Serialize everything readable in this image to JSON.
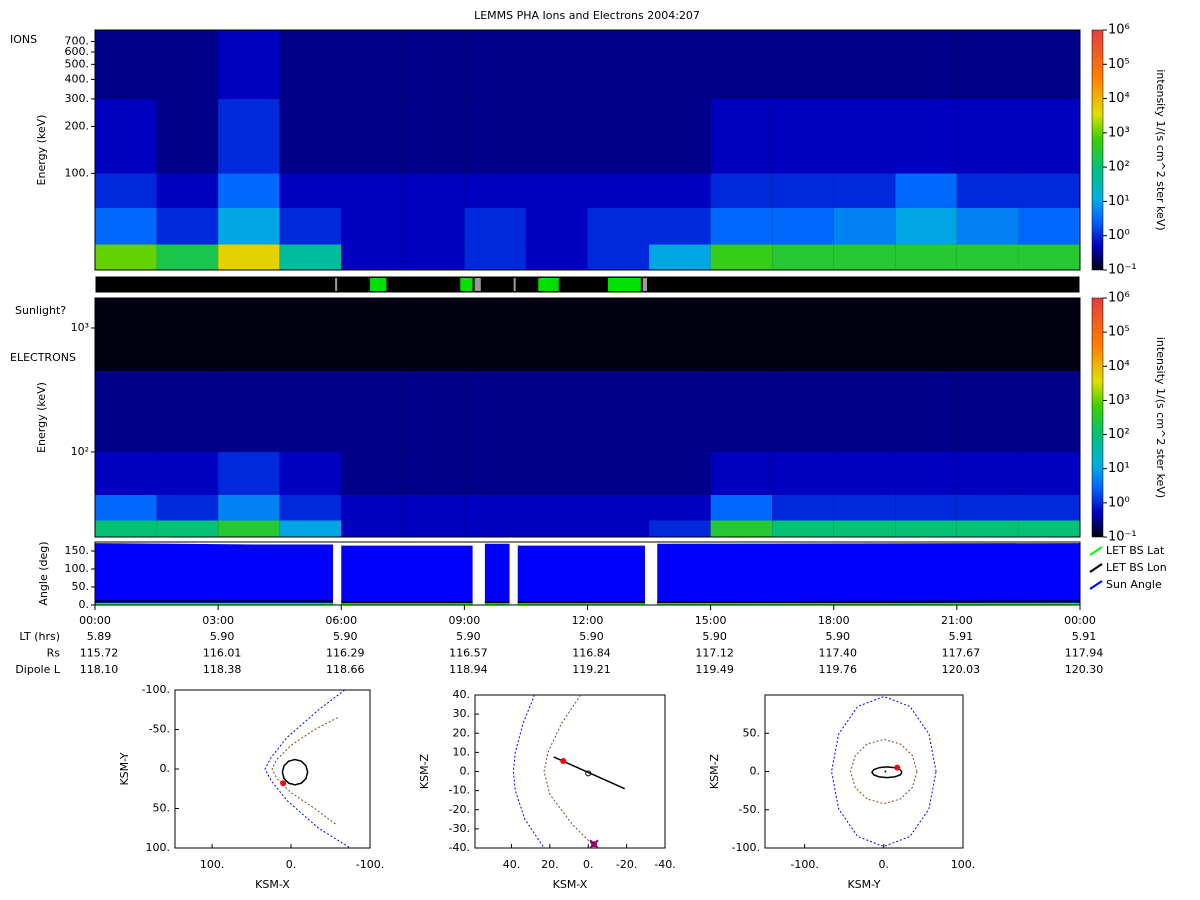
{
  "chart_data": [
    {
      "type": "heatmap",
      "title": "LEMMS PHA Ions and Electrons  2004:207",
      "annotation": "IONS",
      "ylabel": "Energy (keV)",
      "xlim": [
        0,
        24
      ],
      "ylim": [
        24,
        830
      ],
      "ylog": true,
      "yticks": [
        {
          "value": 100,
          "label": "100."
        },
        {
          "value": 200,
          "label": "200."
        },
        {
          "value": 300,
          "label": "300."
        },
        {
          "value": 400,
          "label": "400."
        },
        {
          "value": 500,
          "label": "500."
        },
        {
          "value": 600,
          "label": "600."
        },
        {
          "value": 700,
          "label": "700."
        }
      ],
      "x_edges": [
        0,
        1.5,
        3,
        4.5,
        6,
        7.5,
        9,
        10.5,
        12,
        13.5,
        15,
        16.5,
        18,
        19.5,
        21,
        22.5,
        24
      ],
      "y_edges": [
        24,
        35,
        60,
        100,
        300,
        830
      ],
      "z": [
        [
          1000,
          200,
          5000,
          50,
          0.5,
          0.5,
          1,
          0.5,
          1,
          10,
          500,
          300,
          300,
          300,
          300,
          300
        ],
        [
          3,
          1,
          10,
          1,
          0.5,
          0.5,
          1,
          0.5,
          1,
          1,
          3,
          3,
          5,
          10,
          5,
          3
        ],
        [
          1,
          0.5,
          3,
          0.5,
          0.5,
          0.5,
          0.5,
          0.5,
          0.5,
          0.5,
          1,
          1,
          1,
          3,
          1,
          1
        ],
        [
          0.5,
          0.3,
          1,
          0.3,
          0.3,
          0.3,
          0.3,
          0.3,
          0.3,
          0.3,
          0.5,
          0.5,
          0.5,
          0.5,
          0.5,
          0.5
        ],
        [
          0.3,
          0.3,
          0.5,
          0.3,
          0.3,
          0.3,
          0.3,
          0.3,
          0.3,
          0.3,
          0.3,
          0.3,
          0.3,
          0.3,
          0.3,
          0.3
        ]
      ],
      "zlim": [
        0.1,
        1000000
      ],
      "zlabel": "intensity 1/(s cm^2 ster keV)",
      "zticks": [
        {
          "value": 0.1,
          "label": "10⁻¹"
        },
        {
          "value": 1,
          "label": "10⁰"
        },
        {
          "value": 10,
          "label": "10¹"
        },
        {
          "value": 100,
          "label": "10²"
        },
        {
          "value": 1000,
          "label": "10³"
        },
        {
          "value": 10000,
          "label": "10⁴"
        },
        {
          "value": 100000,
          "label": "10⁵"
        },
        {
          "value": 1000000,
          "label": "10⁶"
        }
      ]
    },
    {
      "type": "event",
      "label": "Sunlight?",
      "xlim": [
        0,
        24
      ],
      "series": [
        {
          "color": "#00e000",
          "intervals": [
            [
              6.7,
              7.1
            ],
            [
              8.9,
              9.2
            ],
            [
              10.8,
              11.3
            ],
            [
              12.5,
              13.3
            ]
          ]
        },
        {
          "color": "#999999",
          "intervals": [
            [
              5.85,
              5.9
            ],
            [
              9.25,
              9.4
            ],
            [
              10.2,
              10.25
            ],
            [
              13.35,
              13.45
            ]
          ]
        }
      ]
    },
    {
      "type": "heatmap",
      "annotation": "ELECTRONS",
      "ylabel": "Energy (keV)",
      "xlim": [
        0,
        24
      ],
      "ylim": [
        20.6,
        1745
      ],
      "ylog": true,
      "yticks": [
        {
          "value": 100,
          "label": "10²"
        },
        {
          "value": 1000,
          "label": "10³"
        }
      ],
      "x_edges": [
        0,
        1.5,
        3,
        4.5,
        6,
        7.5,
        9,
        10.5,
        12,
        13.5,
        15,
        16.5,
        18,
        19.5,
        21,
        22.5,
        24
      ],
      "y_edges": [
        20.6,
        28,
        45,
        100,
        450,
        1745
      ],
      "z": [
        [
          100,
          100,
          300,
          10,
          0.5,
          0.5,
          0.5,
          0.5,
          0.5,
          1,
          300,
          100,
          100,
          100,
          100,
          100
        ],
        [
          3,
          1,
          5,
          1,
          0.5,
          0.5,
          0.5,
          0.5,
          0.5,
          0.5,
          3,
          1,
          1,
          1,
          1,
          1
        ],
        [
          0.5,
          0.5,
          1,
          0.5,
          0.3,
          0.3,
          0.3,
          0.3,
          0.3,
          0.3,
          0.5,
          0.5,
          0.5,
          0.5,
          0.5,
          0.5
        ],
        [
          0.3,
          0.3,
          0.3,
          0.3,
          0.3,
          0.3,
          0.3,
          0.3,
          0.3,
          0.3,
          0.3,
          0.3,
          0.3,
          0.3,
          0.3,
          0.3
        ],
        [
          0.1,
          0.1,
          0.1,
          0.1,
          0.1,
          0.1,
          0.1,
          0.1,
          0.1,
          0.1,
          0.1,
          0.1,
          0.1,
          0.1,
          0.1,
          0.1
        ]
      ],
      "zlim": [
        0.1,
        1000000
      ],
      "zlabel": "intensity 1/(s cm^2 ster keV)",
      "zticks": [
        {
          "value": 0.1,
          "label": "10⁻¹"
        },
        {
          "value": 1,
          "label": "10⁰"
        },
        {
          "value": 10,
          "label": "10¹"
        },
        {
          "value": 100,
          "label": "10²"
        },
        {
          "value": 1000,
          "label": "10³"
        },
        {
          "value": 10000,
          "label": "10⁴"
        },
        {
          "value": 100000,
          "label": "10⁵"
        },
        {
          "value": 1000000,
          "label": "10⁶"
        }
      ]
    },
    {
      "type": "area",
      "ylabel": "Angle (deg)",
      "xlim": [
        0,
        24
      ],
      "ylim": [
        0,
        175
      ],
      "yticks": [
        {
          "value": 0,
          "label": "0."
        },
        {
          "value": 50,
          "label": "50."
        },
        {
          "value": 100,
          "label": "100."
        },
        {
          "value": 150,
          "label": "150."
        }
      ],
      "xticks": [
        {
          "value": 0,
          "label": "00:00"
        },
        {
          "value": 3,
          "label": "03:00"
        },
        {
          "value": 6,
          "label": "06:00"
        },
        {
          "value": 9,
          "label": "09:00"
        },
        {
          "value": 12,
          "label": "12:00"
        },
        {
          "value": 15,
          "label": "15:00"
        },
        {
          "value": 18,
          "label": "18:00"
        },
        {
          "value": 21,
          "label": "21:00"
        },
        {
          "value": 24,
          "label": "00:00"
        }
      ],
      "x": [
        0,
        2,
        4,
        5.8,
        5.9,
        6.0,
        9.2,
        9.3,
        9.5,
        10.1,
        10.2,
        10.3,
        13.4,
        13.5,
        13.7,
        24
      ],
      "series": [
        {
          "name": "LET BS Lat",
          "color": "#00ff00",
          "values": [
            3,
            3,
            3,
            3,
            null,
            3,
            3,
            null,
            3,
            3,
            null,
            3,
            3,
            null,
            3,
            3
          ]
        },
        {
          "name": "LET BS Lon",
          "color": "#000000",
          "values": [
            10,
            10,
            10,
            10,
            null,
            8,
            8,
            null,
            8,
            8,
            null,
            8,
            8,
            null,
            8,
            10
          ]
        },
        {
          "name": "Sun Angle",
          "color": "#0000ff",
          "fill": true,
          "values": [
            172,
            170,
            168,
            168,
            null,
            165,
            165,
            null,
            170,
            170,
            null,
            165,
            165,
            null,
            170,
            172
          ]
        }
      ],
      "ephemeris": [
        {
          "label": "LT (hrs)",
          "values": [
            "5.89",
            "5.90",
            "5.90",
            "5.90",
            "5.90",
            "5.90",
            "5.90",
            "5.91",
            "5.91"
          ]
        },
        {
          "label": "Rs",
          "values": [
            "115.72",
            "116.01",
            "116.29",
            "116.57",
            "116.84",
            "117.12",
            "117.40",
            "117.67",
            "117.94"
          ]
        },
        {
          "label": "Dipole L",
          "values": [
            "118.10",
            "118.38",
            "118.66",
            "118.94",
            "119.21",
            "119.49",
            "119.76",
            "120.03",
            "120.30"
          ]
        }
      ]
    },
    {
      "type": "line",
      "xlabel": "KSM-X",
      "ylabel": "KSM-Y",
      "xlim": [
        147,
        -100
      ],
      "ylim": [
        100,
        -100
      ],
      "xticks": [
        {
          "value": 100,
          "label": "100."
        },
        {
          "value": 0,
          "label": "0."
        },
        {
          "value": -100,
          "label": "-100."
        }
      ],
      "yticks": [
        {
          "value": -100,
          "label": "-100."
        },
        {
          "value": -50,
          "label": "-50."
        },
        {
          "value": 0,
          "label": "0."
        },
        {
          "value": 50,
          "label": "50."
        },
        {
          "value": 100,
          "label": "100."
        }
      ],
      "series": [
        {
          "color": "#0000ff",
          "dash": true,
          "x": [
            -68,
            -35,
            5,
            25,
            33,
            25,
            5,
            -35,
            -75
          ],
          "y": [
            -100,
            -75,
            -40,
            -15,
            0,
            15,
            40,
            75,
            100
          ]
        },
        {
          "color": "#8b4513",
          "dash": true,
          "x": [
            -59,
            -30,
            0,
            18,
            24,
            18,
            0,
            -30,
            -58
          ],
          "y": [
            -65,
            -50,
            -30,
            -12,
            0,
            12,
            30,
            50,
            71
          ]
        },
        {
          "color": "#000000",
          "x": [
            11,
            8.9,
            3,
            -5,
            -13,
            -18.9,
            -21,
            -18.9,
            -13,
            -5,
            3,
            8.9,
            11
          ],
          "y": [
            4,
            12,
            17.9,
            20,
            17.9,
            12,
            4,
            -4,
            -9.9,
            -12,
            -9.9,
            -4,
            4
          ]
        },
        {
          "color": "#ff0000",
          "marker": "dot",
          "x": [
            10
          ],
          "y": [
            18
          ]
        }
      ]
    },
    {
      "type": "line",
      "xlabel": "KSM-X",
      "ylabel": "KSM-Z",
      "xlim": [
        59,
        -40
      ],
      "ylim": [
        -40,
        40
      ],
      "xticks": [
        {
          "value": 40,
          "label": "40."
        },
        {
          "value": 20,
          "label": "20."
        },
        {
          "value": 0,
          "label": "0."
        },
        {
          "value": -20,
          "label": "-20."
        },
        {
          "value": -40,
          "label": "-40."
        }
      ],
      "yticks": [
        {
          "value": 40,
          "label": "40."
        },
        {
          "value": 30,
          "label": "30."
        },
        {
          "value": 20,
          "label": "20."
        },
        {
          "value": 10,
          "label": "10."
        },
        {
          "value": 0,
          "label": "0."
        },
        {
          "value": -10,
          "label": "-10."
        },
        {
          "value": -20,
          "label": "-20."
        },
        {
          "value": -30,
          "label": "-30."
        },
        {
          "value": -40,
          "label": "-40."
        }
      ],
      "series": [
        {
          "color": "#0000ff",
          "dash": true,
          "x": [
            28,
            34,
            38,
            39,
            38,
            33,
            23
          ],
          "y": [
            40,
            25,
            10,
            0,
            -10,
            -25,
            -40
          ]
        },
        {
          "color": "#8b4513",
          "dash": true,
          "x": [
            4,
            14,
            21,
            23,
            20,
            8,
            -4
          ],
          "y": [
            40,
            25,
            10,
            0,
            -12,
            -28,
            -40
          ]
        },
        {
          "color": "#000000",
          "x": [
            18,
            -19
          ],
          "y": [
            7.6,
            -9
          ]
        },
        {
          "color": "#000000",
          "marker": "circle",
          "x": [
            0
          ],
          "y": [
            -1
          ]
        },
        {
          "color": "#ff0000",
          "marker": "dot",
          "x": [
            13,
            -3
          ],
          "y": [
            5.5,
            -38
          ]
        },
        {
          "color": "#800080",
          "marker": "x",
          "x": [
            -3
          ],
          "y": [
            -38
          ]
        }
      ]
    },
    {
      "type": "line",
      "xlabel": "KSM-Y",
      "ylabel": "KSM-Z",
      "xlim": [
        -150,
        100
      ],
      "ylim": [
        -100,
        100
      ],
      "xticks": [
        {
          "value": -100,
          "label": "-100."
        },
        {
          "value": 0,
          "label": "0."
        },
        {
          "value": 100,
          "label": "100."
        }
      ],
      "yticks": [
        {
          "value": -100,
          "label": "-100."
        },
        {
          "value": -50,
          "label": "-50."
        },
        {
          "value": 0,
          "label": "0."
        },
        {
          "value": 50,
          "label": "50."
        }
      ],
      "series": [
        {
          "color": "#0000ff",
          "dash": true,
          "x": [
            66,
            57,
            33,
            0,
            -33,
            -57,
            -66,
            -57,
            -33,
            0,
            33,
            57,
            66
          ],
          "y": [
            0,
            49,
            85,
            98,
            85,
            49,
            0,
            -49,
            -85,
            -98,
            -85,
            -49,
            0
          ]
        },
        {
          "color": "#8b4513",
          "dash": true,
          "x": [
            42,
            36,
            21,
            0,
            -21,
            -36,
            -42,
            -36,
            -21,
            0,
            21,
            36,
            42
          ],
          "y": [
            0,
            21,
            36,
            42,
            36,
            21,
            0,
            -21,
            -36,
            -42,
            -36,
            -21,
            0
          ]
        },
        {
          "color": "#000000",
          "x": [
            23,
            20.5,
            13.5,
            4,
            -5.5,
            -12.5,
            -15,
            -12.5,
            -5.5,
            4,
            13.5,
            20.5,
            23
          ],
          "y": [
            -1,
            2.5,
            5.1,
            6,
            5.1,
            2.5,
            -1,
            -4.5,
            -7.1,
            -8,
            -7.1,
            -4.5,
            -1
          ]
        },
        {
          "color": "#000000",
          "marker": "dot",
          "x": [
            2
          ],
          "y": [
            0
          ]
        },
        {
          "color": "#ff0000",
          "marker": "dot",
          "x": [
            17
          ],
          "y": [
            5
          ]
        }
      ]
    }
  ]
}
